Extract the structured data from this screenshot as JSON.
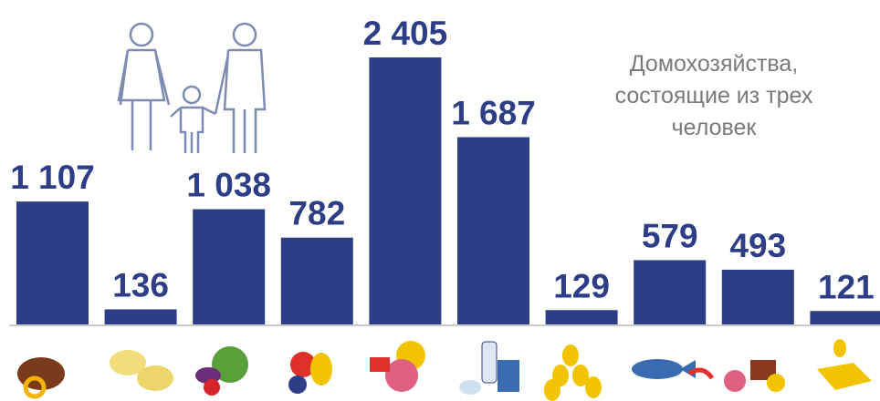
{
  "chart_data": {
    "type": "bar",
    "annotation": [
      "Домохозяйства,",
      "состоящие из трех",
      "человек"
    ],
    "categories": [
      null,
      null,
      null,
      null,
      null,
      null,
      null,
      null,
      null,
      null
    ],
    "values": [
      1107,
      136,
      1038,
      782,
      2405,
      1687,
      129,
      579,
      493,
      121
    ],
    "value_labels": [
      "1 107",
      "136",
      "1 038",
      "782",
      "2 405",
      "1 687",
      "129",
      "579",
      "493",
      "121"
    ],
    "color": "#2e3e86"
  }
}
